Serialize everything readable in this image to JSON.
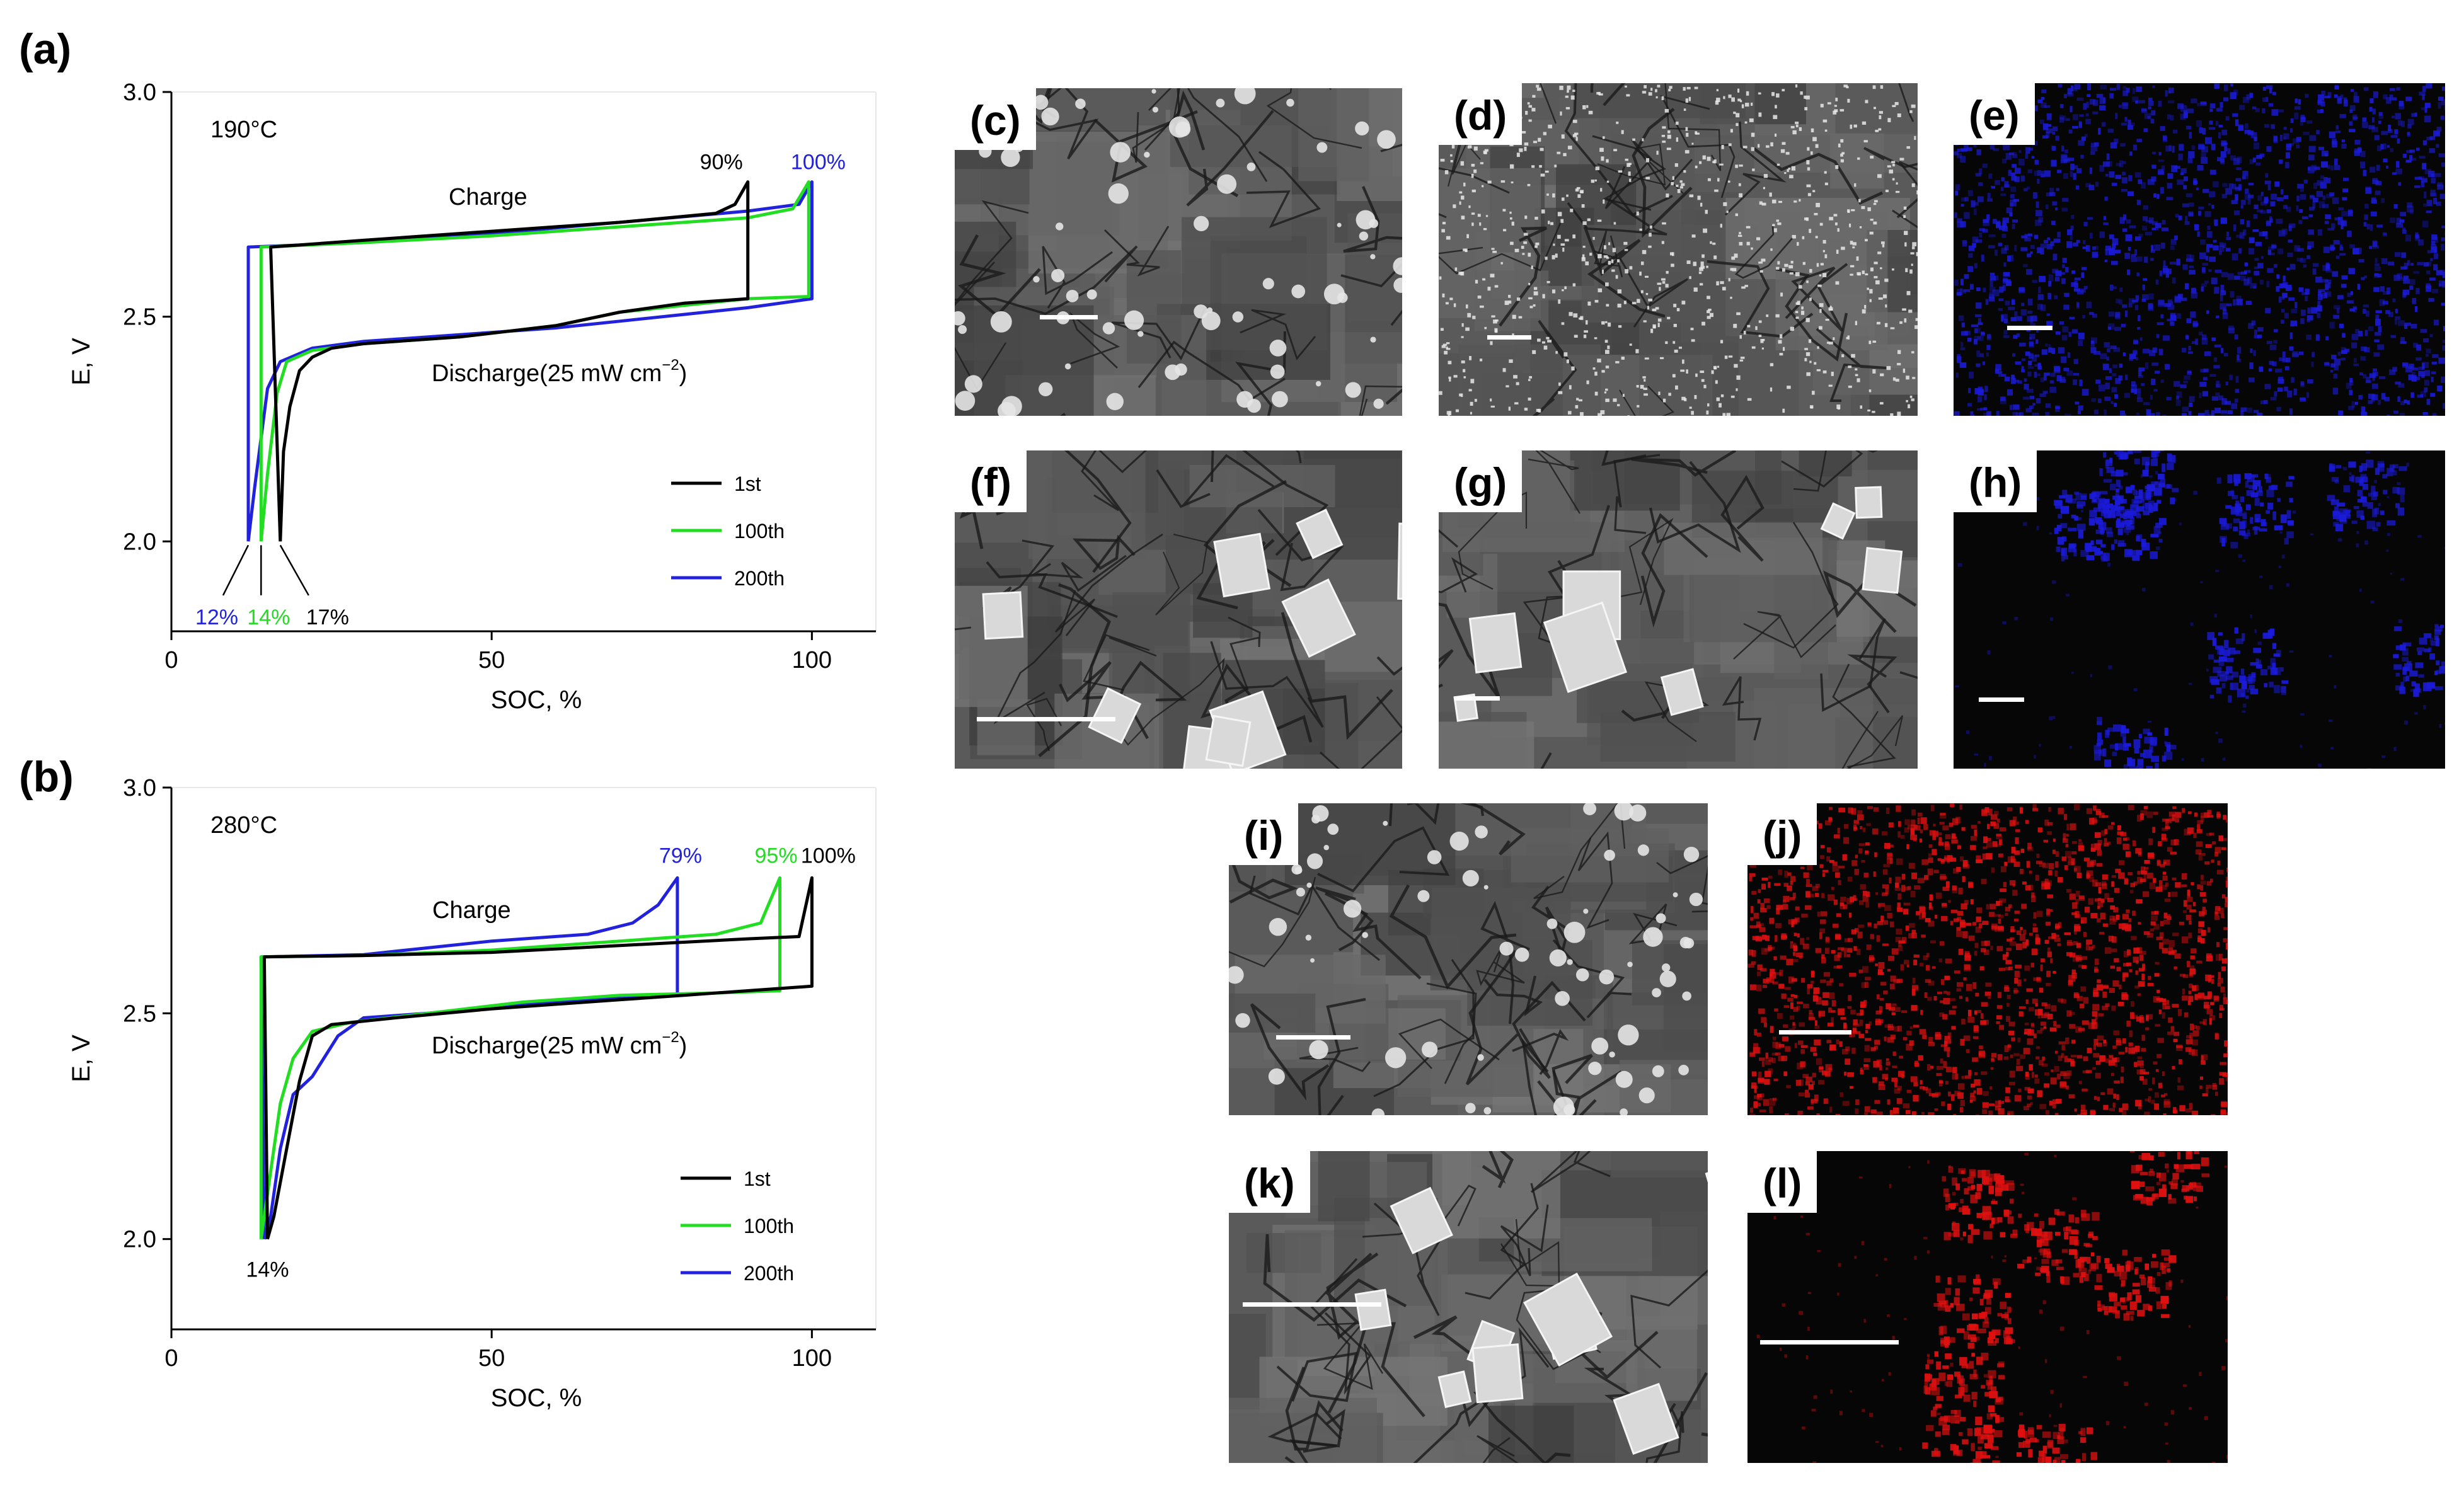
{
  "panels": {
    "a": "(a)",
    "b": "(b)",
    "c": "(c)",
    "d": "(d)",
    "e": "(e)",
    "f": "(f)",
    "g": "(g)",
    "h": "(h)",
    "i": "(i)",
    "j": "(j)",
    "k": "(k)",
    "l": "(l)"
  },
  "colors": {
    "1st": "#000000",
    "100th": "#22dd22",
    "200th": "#2222dd",
    "sem_blue_map": "#1a1ad8",
    "sem_red_map": "#e01010"
  },
  "chart_data": [
    {
      "type": "line",
      "panel": "(a)",
      "temperature": "190°C",
      "xlabel": "SOC, %",
      "ylabel": "E, V",
      "xlim": [
        0,
        110
      ],
      "ylim": [
        1.8,
        3.0
      ],
      "xticks": [
        "0",
        "50",
        "100"
      ],
      "yticks": [
        "2.0",
        "2.5",
        "3.0"
      ],
      "legend": [
        "1st",
        "100th",
        "200th"
      ],
      "legend_position": "bottom-right",
      "annotations": {
        "charge": "Charge",
        "discharge": "Discharge(25 mW cm",
        "discharge_sup": "−2",
        "discharge_close": ")",
        "end_black": "90%",
        "end_blue": "100%",
        "start_blue": "12%",
        "start_green": "14%",
        "start_black": "17%"
      },
      "series": [
        {
          "name": "1st",
          "charge": [
            [
              15.5,
              2.655
            ],
            [
              30,
              2.67
            ],
            [
              50,
              2.69
            ],
            [
              70,
              2.71
            ],
            [
              85,
              2.73
            ],
            [
              88,
              2.75
            ],
            [
              90,
              2.8
            ]
          ],
          "discharge": [
            [
              90,
              2.54
            ],
            [
              80,
              2.53
            ],
            [
              70,
              2.51
            ],
            [
              60,
              2.48
            ],
            [
              45,
              2.455
            ],
            [
              30,
              2.44
            ],
            [
              25,
              2.43
            ],
            [
              22,
              2.41
            ],
            [
              20,
              2.38
            ],
            [
              18.5,
              2.3
            ],
            [
              17.5,
              2.2
            ],
            [
              17,
              2.0
            ]
          ]
        },
        {
          "name": "100th",
          "charge": [
            [
              14,
              2.655
            ],
            [
              30,
              2.665
            ],
            [
              50,
              2.68
            ],
            [
              70,
              2.7
            ],
            [
              90,
              2.72
            ],
            [
              97,
              2.74
            ],
            [
              99.5,
              2.8
            ]
          ],
          "discharge": [
            [
              99.5,
              2.545
            ],
            [
              90,
              2.54
            ],
            [
              80,
              2.525
            ],
            [
              70,
              2.51
            ],
            [
              60,
              2.48
            ],
            [
              45,
              2.455
            ],
            [
              30,
              2.44
            ],
            [
              22,
              2.425
            ],
            [
              18,
              2.4
            ],
            [
              16.5,
              2.33
            ],
            [
              15,
              2.15
            ],
            [
              14,
              2.0
            ]
          ]
        },
        {
          "name": "200th",
          "charge": [
            [
              12,
              2.655
            ],
            [
              30,
              2.665
            ],
            [
              50,
              2.685
            ],
            [
              70,
              2.71
            ],
            [
              90,
              2.735
            ],
            [
              98,
              2.75
            ],
            [
              100,
              2.8
            ]
          ],
          "discharge": [
            [
              100,
              2.54
            ],
            [
              90,
              2.52
            ],
            [
              80,
              2.505
            ],
            [
              70,
              2.49
            ],
            [
              60,
              2.475
            ],
            [
              45,
              2.46
            ],
            [
              30,
              2.445
            ],
            [
              22,
              2.43
            ],
            [
              17,
              2.4
            ],
            [
              15,
              2.34
            ],
            [
              13,
              2.12
            ],
            [
              12,
              2.0
            ]
          ]
        }
      ]
    },
    {
      "type": "line",
      "panel": "(b)",
      "temperature": "280°C",
      "xlabel": "SOC, %",
      "ylabel": "E, V",
      "xlim": [
        0,
        110
      ],
      "ylim": [
        1.8,
        3.0
      ],
      "xticks": [
        "0",
        "50",
        "100"
      ],
      "yticks": [
        "2.0",
        "2.5",
        "3.0"
      ],
      "legend": [
        "1st",
        "100th",
        "200th"
      ],
      "legend_position": "bottom-right",
      "annotations": {
        "charge": "Charge",
        "discharge": "Discharge(25 mW cm",
        "discharge_sup": "−2",
        "discharge_close": ")",
        "end_blue": "79%",
        "end_green": "95%",
        "end_black": "100%",
        "start": "14%"
      },
      "series": [
        {
          "name": "1st",
          "charge": [
            [
              14.5,
              2.625
            ],
            [
              30,
              2.628
            ],
            [
              50,
              2.635
            ],
            [
              70,
              2.65
            ],
            [
              90,
              2.665
            ],
            [
              98,
              2.67
            ],
            [
              100,
              2.8
            ]
          ],
          "discharge": [
            [
              100,
              2.56
            ],
            [
              90,
              2.55
            ],
            [
              80,
              2.54
            ],
            [
              70,
              2.53
            ],
            [
              50,
              2.51
            ],
            [
              35,
              2.49
            ],
            [
              25,
              2.475
            ],
            [
              22,
              2.45
            ],
            [
              20,
              2.35
            ],
            [
              18,
              2.2
            ],
            [
              16,
              2.05
            ],
            [
              15,
              2.0
            ]
          ]
        },
        {
          "name": "100th",
          "charge": [
            [
              14,
              2.625
            ],
            [
              30,
              2.628
            ],
            [
              50,
              2.64
            ],
            [
              70,
              2.66
            ],
            [
              85,
              2.675
            ],
            [
              92,
              2.7
            ],
            [
              95,
              2.8
            ]
          ],
          "discharge": [
            [
              95,
              2.55
            ],
            [
              85,
              2.545
            ],
            [
              70,
              2.54
            ],
            [
              55,
              2.525
            ],
            [
              40,
              2.5
            ],
            [
              28,
              2.48
            ],
            [
              22,
              2.46
            ],
            [
              19,
              2.4
            ],
            [
              17,
              2.3
            ],
            [
              15.5,
              2.15
            ],
            [
              14,
              2.0
            ]
          ]
        },
        {
          "name": "200th",
          "charge": [
            [
              14,
              2.625
            ],
            [
              30,
              2.63
            ],
            [
              50,
              2.66
            ],
            [
              65,
              2.675
            ],
            [
              72,
              2.7
            ],
            [
              76,
              2.74
            ],
            [
              79,
              2.8
            ]
          ],
          "discharge": [
            [
              79,
              2.54
            ],
            [
              70,
              2.535
            ],
            [
              55,
              2.52
            ],
            [
              40,
              2.5
            ],
            [
              30,
              2.49
            ],
            [
              26,
              2.45
            ],
            [
              22,
              2.36
            ],
            [
              19,
              2.32
            ],
            [
              17,
              2.2
            ],
            [
              15.5,
              2.05
            ],
            [
              14.5,
              2.0
            ]
          ]
        }
      ]
    }
  ]
}
